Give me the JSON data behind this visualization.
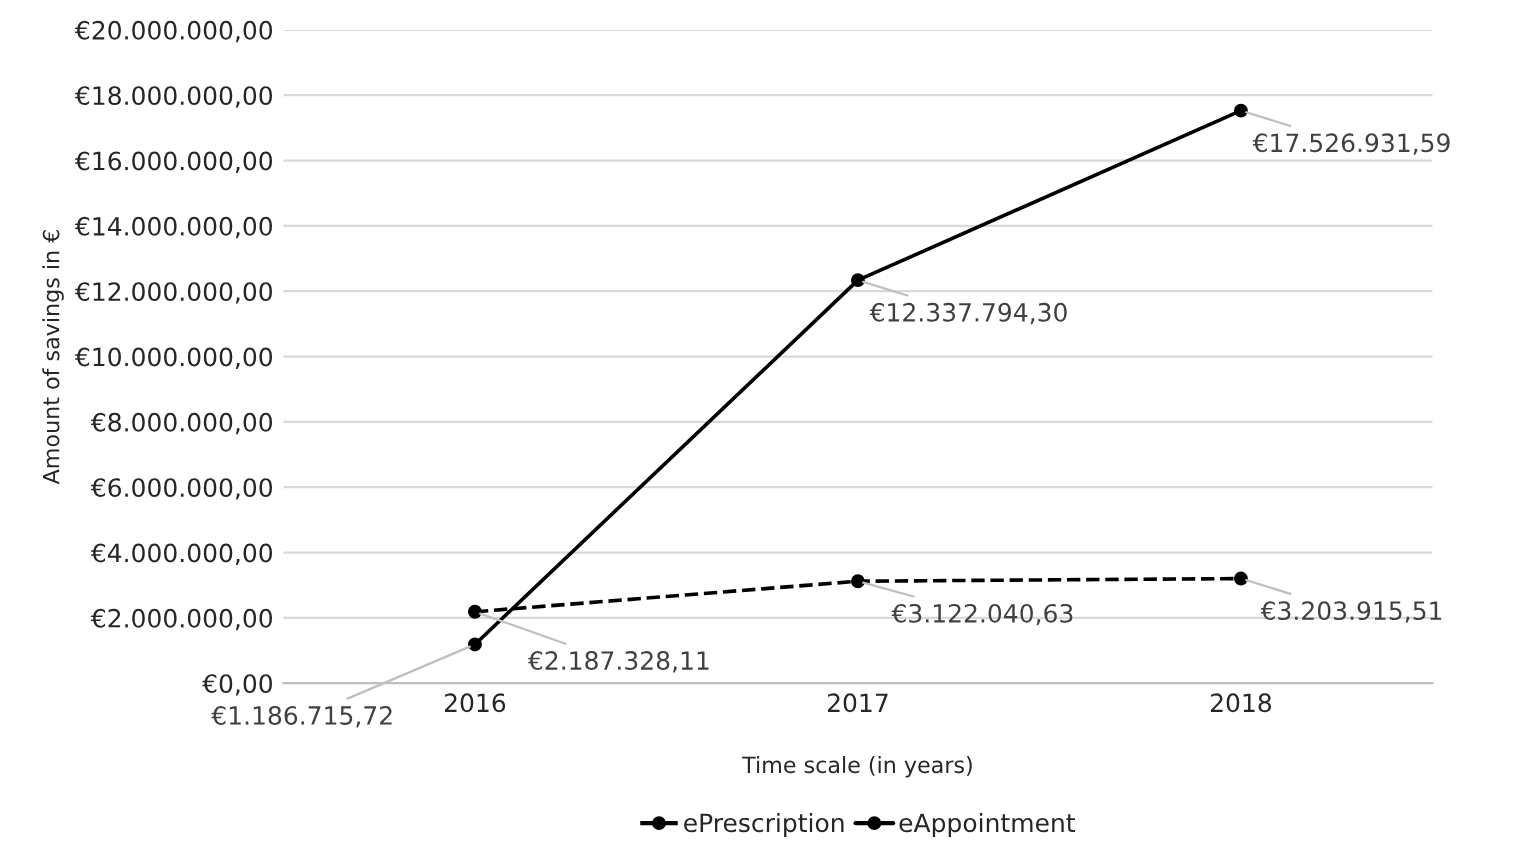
{
  "chart_data": {
    "type": "line",
    "xlabel": "Time scale (in years)",
    "ylabel": "Amount of savings in €",
    "categories": [
      "2016",
      "2017",
      "2018"
    ],
    "series": [
      {
        "name": "ePrescription",
        "color": "#000000",
        "line_style": "dashed",
        "values": [
          2187328.11,
          3122040.63,
          3203915.51
        ],
        "value_labels": [
          "€2.187.328,11",
          "€3.122.040,63",
          "€3.203.915,51"
        ]
      },
      {
        "name": "eAppointment",
        "color": "#000000",
        "line_style": "solid",
        "values": [
          1186715.72,
          12337794.3,
          17526931.59
        ],
        "value_labels": [
          "€1.186.715,72",
          "€12.337.794,30",
          "€17.526.931,59"
        ]
      }
    ],
    "ylim": [
      0,
      20000000
    ],
    "yticks": [
      {
        "value": 0,
        "label": "€0,00"
      },
      {
        "value": 2000000,
        "label": "€2.000.000,00"
      },
      {
        "value": 4000000,
        "label": "€4.000.000,00"
      },
      {
        "value": 6000000,
        "label": "€6.000.000,00"
      },
      {
        "value": 8000000,
        "label": "€8.000.000,00"
      },
      {
        "value": 10000000,
        "label": "€10.000.000,00"
      },
      {
        "value": 12000000,
        "label": "€12.000.000,00"
      },
      {
        "value": 14000000,
        "label": "€14.000.000,00"
      },
      {
        "value": 16000000,
        "label": "€16.000.000,00"
      },
      {
        "value": 18000000,
        "label": "€18.000.000,00"
      },
      {
        "value": 20000000,
        "label": "€20.000.000,00"
      }
    ],
    "grid": "y",
    "legend": "bottom",
    "marker": "circle"
  }
}
